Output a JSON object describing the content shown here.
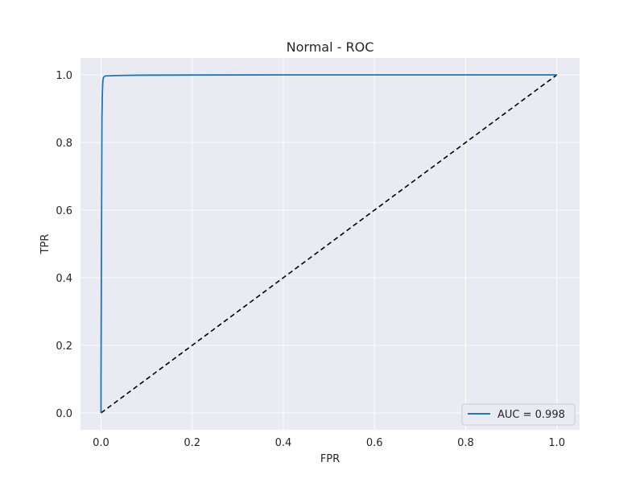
{
  "chart_data": {
    "type": "line",
    "title": "Normal - ROC",
    "xlabel": "FPR",
    "ylabel": "TPR",
    "xlim": [
      -0.045,
      1.05
    ],
    "ylim": [
      -0.05,
      1.05
    ],
    "xticks": [
      0.0,
      0.2,
      0.4,
      0.6,
      0.8,
      1.0
    ],
    "yticks": [
      0.0,
      0.2,
      0.4,
      0.6,
      0.8,
      1.0
    ],
    "tick_labels": {
      "x": [
        "0.0",
        "0.2",
        "0.4",
        "0.6",
        "0.8",
        "1.0"
      ],
      "y": [
        "0.0",
        "0.2",
        "0.4",
        "0.6",
        "0.8",
        "1.0"
      ]
    },
    "grid": true,
    "background": "#eaeaf2",
    "legend": {
      "placement": "lower-right"
    },
    "series": [
      {
        "name": "AUC = 0.998",
        "color": "#1f77b4",
        "style": "solid",
        "x": [
          0.0,
          0.0,
          0.001,
          0.002,
          0.003,
          0.004,
          0.005,
          0.007,
          0.01,
          0.015,
          0.03,
          0.08,
          0.2,
          0.4,
          0.6,
          0.8,
          1.0
        ],
        "y": [
          0.0,
          0.1,
          0.5,
          0.87,
          0.95,
          0.98,
          0.99,
          0.995,
          0.997,
          0.997,
          0.998,
          0.999,
          0.9995,
          1.0,
          1.0,
          1.0,
          1.0
        ]
      },
      {
        "name": "",
        "color": "#000000",
        "style": "dashed",
        "x": [
          0.0,
          1.0
        ],
        "y": [
          0.0,
          1.0
        ]
      }
    ]
  }
}
